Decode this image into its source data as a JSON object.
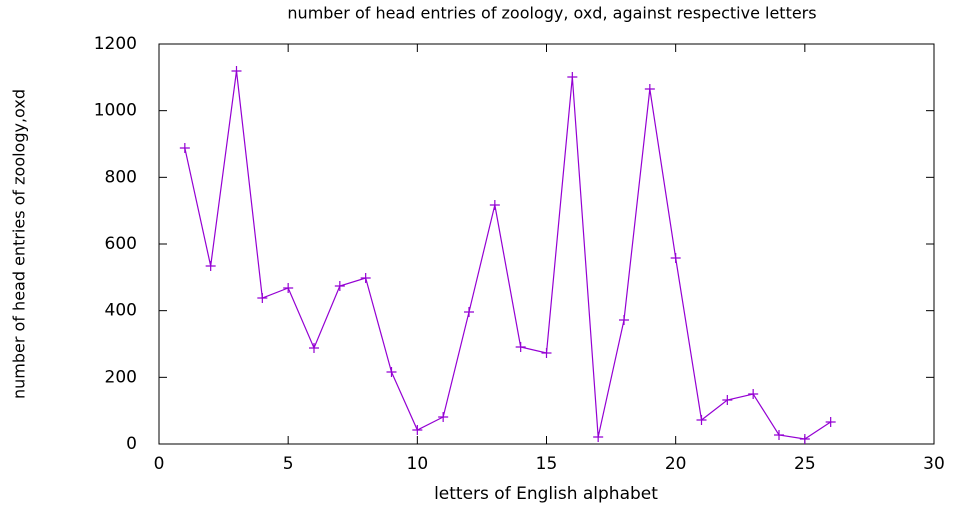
{
  "chart_data": {
    "type": "line",
    "title": "number of head entries of zoology, oxd, against respective letters",
    "x_label": "letters of English alphabet",
    "y_label": "number of head entries of zoology,oxd",
    "series": [
      {
        "color": "#9400d3",
        "x": [
          1,
          2,
          3,
          4,
          5,
          6,
          7,
          8,
          9,
          10,
          11,
          12,
          13,
          14,
          15,
          16,
          17,
          18,
          19,
          20,
          21,
          22,
          23,
          24,
          25,
          26
        ],
        "values": [
          888,
          534,
          1119,
          438,
          468,
          288,
          474,
          498,
          216,
          42,
          81,
          396,
          717,
          291,
          273,
          1101,
          21,
          372,
          1065,
          558,
          72,
          132,
          150,
          27,
          15,
          66
        ]
      }
    ],
    "xlim": [
      0,
      30
    ],
    "xticks": [
      0,
      5,
      10,
      15,
      20,
      25,
      30
    ],
    "ylim": [
      0,
      1200
    ],
    "yticks": [
      0,
      200,
      400,
      600,
      800,
      1000,
      1200
    ]
  }
}
